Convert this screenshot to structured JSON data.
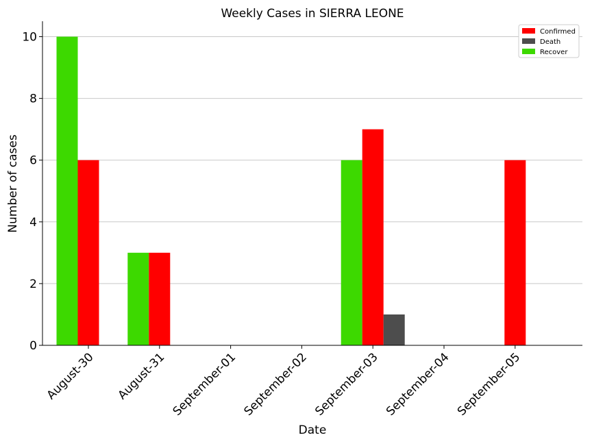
{
  "chart_data": {
    "type": "bar",
    "title": "Weekly Cases in SIERRA LEONE",
    "xlabel": "Date",
    "ylabel": "Number of cases",
    "categories": [
      "August-30",
      "August-31",
      "September-01",
      "September-02",
      "September-03",
      "September-04",
      "September-05"
    ],
    "ylim": [
      0,
      10.5
    ],
    "yticks": [
      0,
      2,
      4,
      6,
      8,
      10
    ],
    "grid": "horizontal",
    "legend_position": "top-right",
    "series": [
      {
        "name": "Recover",
        "color": "#3dd900",
        "values": [
          10,
          3,
          0,
          0,
          6,
          0,
          0
        ]
      },
      {
        "name": "Confirmed",
        "color": "#ff0000",
        "values": [
          6,
          3,
          0,
          0,
          7,
          0,
          6
        ]
      },
      {
        "name": "Death",
        "color": "#4d4d4d",
        "values": [
          0,
          0,
          0,
          0,
          1,
          0,
          0
        ]
      }
    ],
    "legend_order": [
      "Confirmed",
      "Death",
      "Recover"
    ]
  }
}
